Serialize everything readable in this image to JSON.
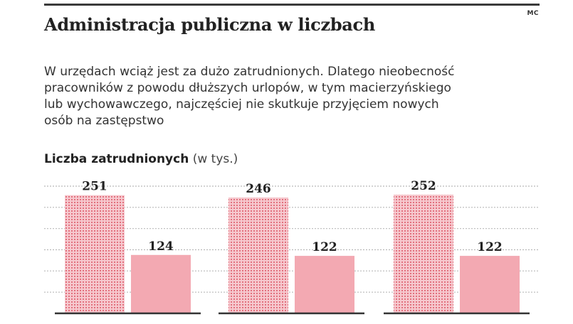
{
  "credit": "MC",
  "title": "Administracja publiczna w liczbach",
  "lead": [
    "W urzędach wciąż jest za dużo zatrudnionych. Dlatego nieobecność",
    "pracowników z powodu dłuższych urlopów, w tym macierzyńskiego",
    "lub wychowawczego, najczęściej nie skutkuje przyjęciem nowych",
    "osób na zastępstwo"
  ],
  "subtitle_bold": "Liczba zatrudnionych",
  "subtitle_unit": "(w tys.)",
  "colors": {
    "bar_pattern_bg": "#f6c8ce",
    "bar_pattern_dot": "#e2717e",
    "bar_solid": "#f3a9b2",
    "grid": "#b9b9b9",
    "baseline": "#333333",
    "text": "#222222"
  },
  "chart_data": {
    "type": "bar",
    "categories": [
      "",
      "",
      ""
    ],
    "series": [
      {
        "values": [
          251,
          246,
          252
        ],
        "style": "dotted"
      },
      {
        "values": [
          124,
          122,
          122
        ],
        "style": "solid"
      }
    ],
    "data_labels": true,
    "ylim": [
      0,
      270
    ],
    "grid": true
  }
}
